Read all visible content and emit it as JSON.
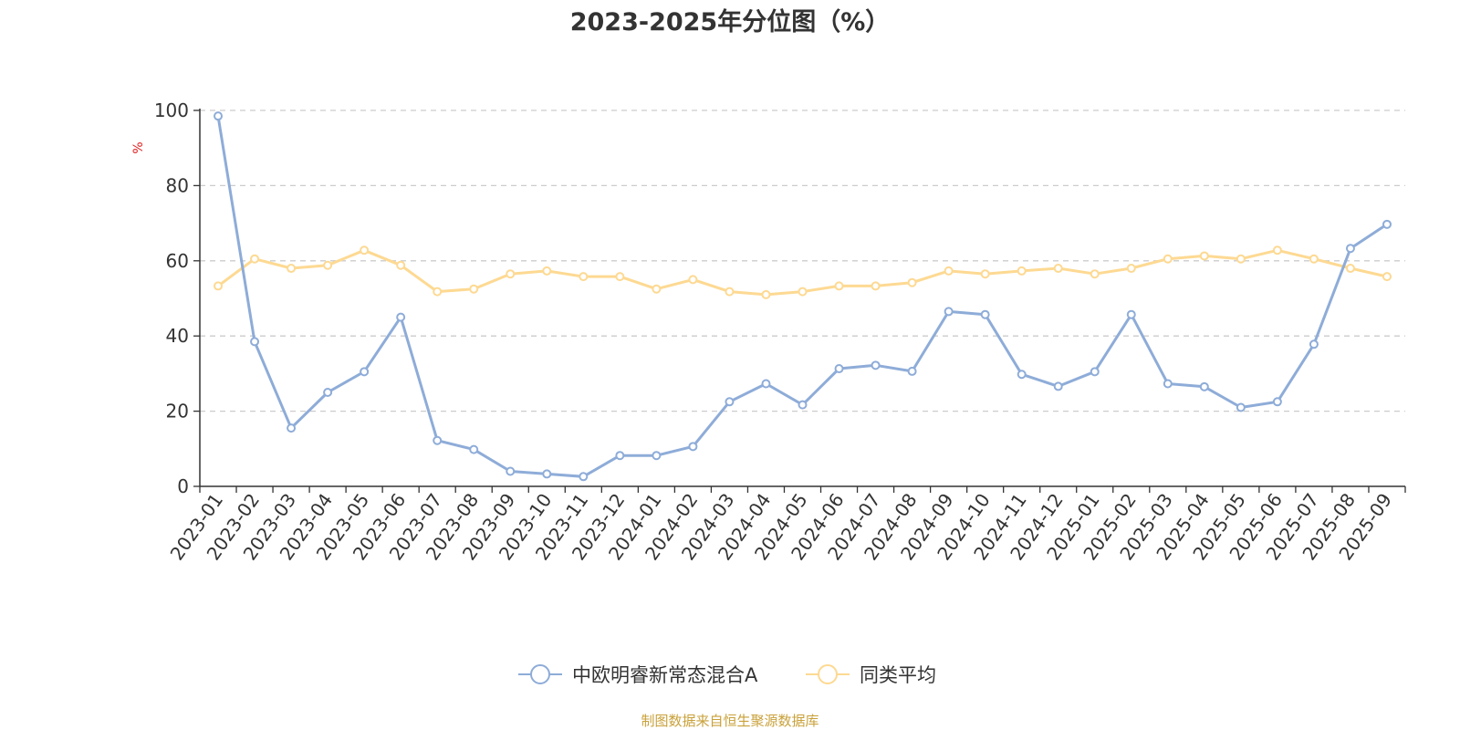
{
  "source_note": "制图数据来自恒生聚源数据库",
  "colors": {
    "series_1": "#8eacd8",
    "series_2": "#fdd992",
    "axis": "#333333",
    "grid": "#cccccc",
    "unit": "#e02020",
    "source": "#c9a13a"
  },
  "chart_data": {
    "type": "line",
    "title": "2023-2025年分位图（%）",
    "ylabel": "%",
    "ylim": [
      0,
      100
    ],
    "yticks": [
      0,
      20,
      40,
      60,
      80,
      100
    ],
    "grid": "horizontal-dashed",
    "legend_position": "bottom",
    "categories": [
      "2023-01",
      "2023-02",
      "2023-03",
      "2023-04",
      "2023-05",
      "2023-06",
      "2023-07",
      "2023-08",
      "2023-09",
      "2023-10",
      "2023-11",
      "2023-12",
      "2024-01",
      "2024-02",
      "2024-03",
      "2024-04",
      "2024-05",
      "2024-06",
      "2024-07",
      "2024-08",
      "2024-09",
      "2024-10",
      "2024-11",
      "2024-12",
      "2025-01",
      "2025-02",
      "2025-03",
      "2025-04",
      "2025-05",
      "2025-06",
      "2025-07",
      "2025-08",
      "2025-09"
    ],
    "series": [
      {
        "name": "中欧明睿新常态混合A",
        "color": "#8eacd8",
        "values": [
          98.5,
          38.5,
          15.5,
          25.0,
          30.5,
          45.0,
          12.2,
          9.8,
          4.0,
          3.3,
          2.6,
          8.2,
          8.2,
          10.6,
          22.5,
          27.3,
          21.7,
          31.3,
          32.2,
          30.6,
          46.5,
          45.7,
          29.8,
          26.6,
          30.5,
          45.7,
          27.3,
          26.5,
          21.0,
          22.5,
          37.8,
          63.3,
          69.7
        ]
      },
      {
        "name": "同类平均",
        "color": "#fdd992",
        "values": [
          53.3,
          60.5,
          58.0,
          58.8,
          62.8,
          58.8,
          51.8,
          52.5,
          56.5,
          57.3,
          55.8,
          55.8,
          52.5,
          55.0,
          51.8,
          51.0,
          51.8,
          53.3,
          53.3,
          54.2,
          57.3,
          56.5,
          57.3,
          58.0,
          56.5,
          58.0,
          60.5,
          61.3,
          60.5,
          62.8,
          60.5,
          58.0,
          55.8
        ]
      }
    ]
  }
}
